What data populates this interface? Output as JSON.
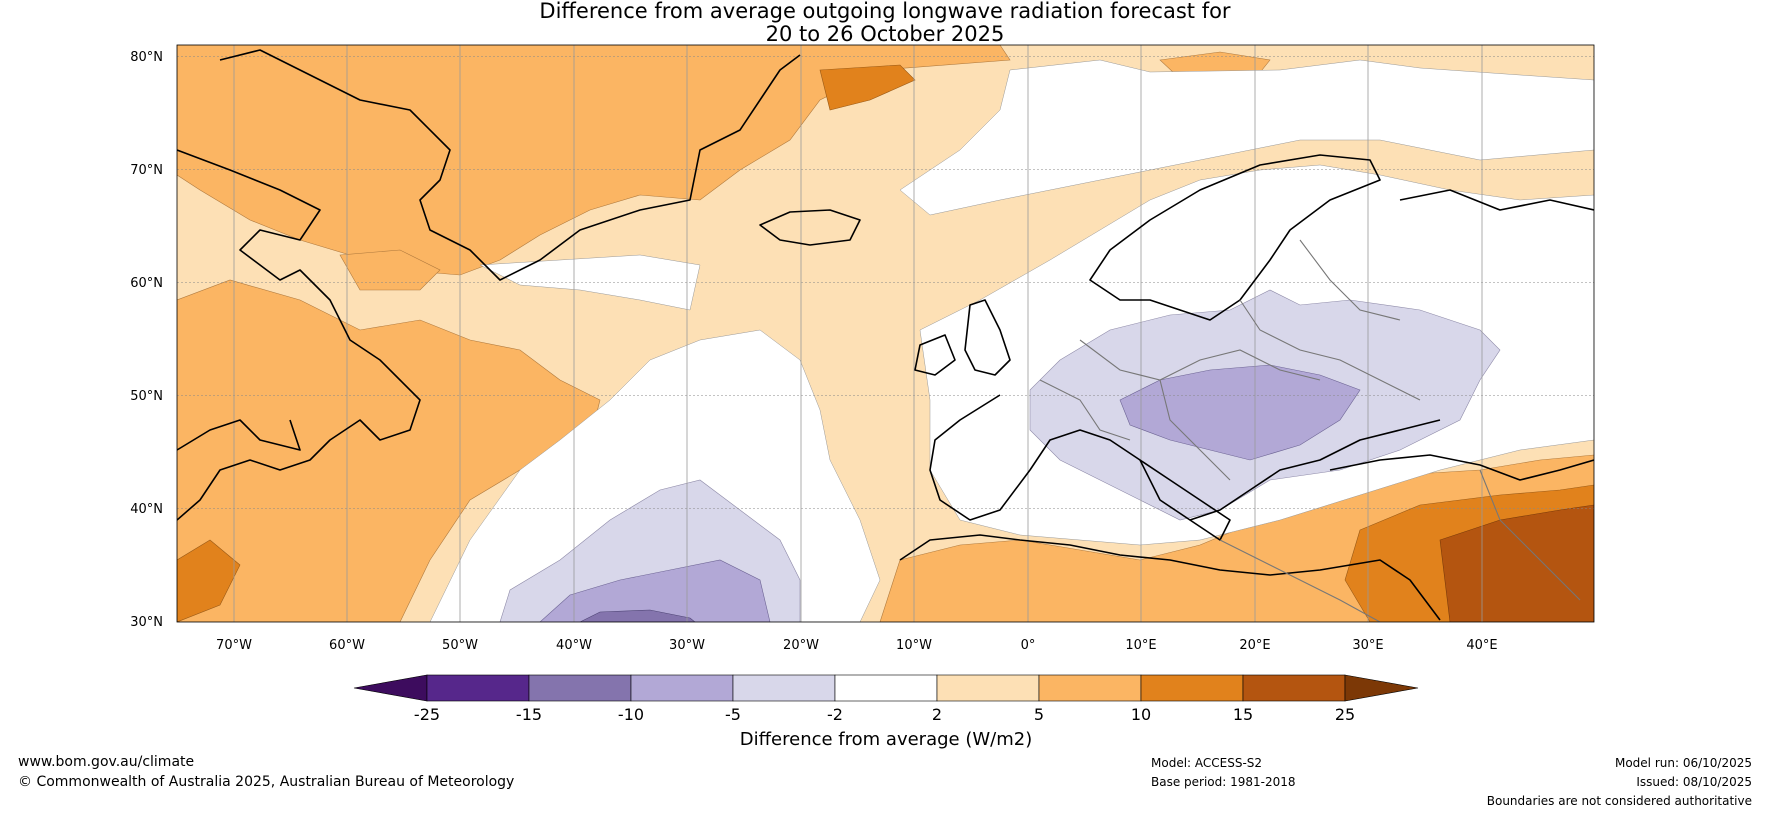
{
  "header": {
    "title_line1": "Difference from average outgoing longwave radiation forecast for",
    "title_line2": "20 to 26 October 2025"
  },
  "map": {
    "lat_labels": [
      "80°N",
      "70°N",
      "60°N",
      "50°N",
      "40°N",
      "30°N"
    ],
    "lon_labels": [
      "70°W",
      "60°W",
      "50°W",
      "40°W",
      "30°W",
      "20°W",
      "10°W",
      "0°",
      "10°E",
      "20°E",
      "30°E",
      "40°E"
    ],
    "lat_range": [
      30,
      81
    ],
    "lon_range": [
      -75,
      50
    ]
  },
  "legend": {
    "title": "Difference from average (W/m2)",
    "ticks": [
      "-25",
      "-15",
      "-10",
      "-5",
      "-2",
      "2",
      "5",
      "10",
      "15",
      "25"
    ],
    "colors": [
      "#3d0c5e",
      "#56278b",
      "#8474ad",
      "#b2a8d6",
      "#d8d7ea",
      "#ffffff",
      "#fde0b5",
      "#fbb563",
      "#e1821c",
      "#b45510",
      "#7c3806"
    ]
  },
  "footer": {
    "website": "www.bom.gov.au/climate",
    "copyright": "© Commonwealth of Australia 2025, Australian Bureau of Meteorology",
    "model": "Model: ACCESS-S2",
    "base_period": "Base period: 1981-2018",
    "model_run": "Model run: 06/10/2025",
    "issued": "Issued: 08/10/2025",
    "disclaimer": "Boundaries are not considered authoritative"
  }
}
